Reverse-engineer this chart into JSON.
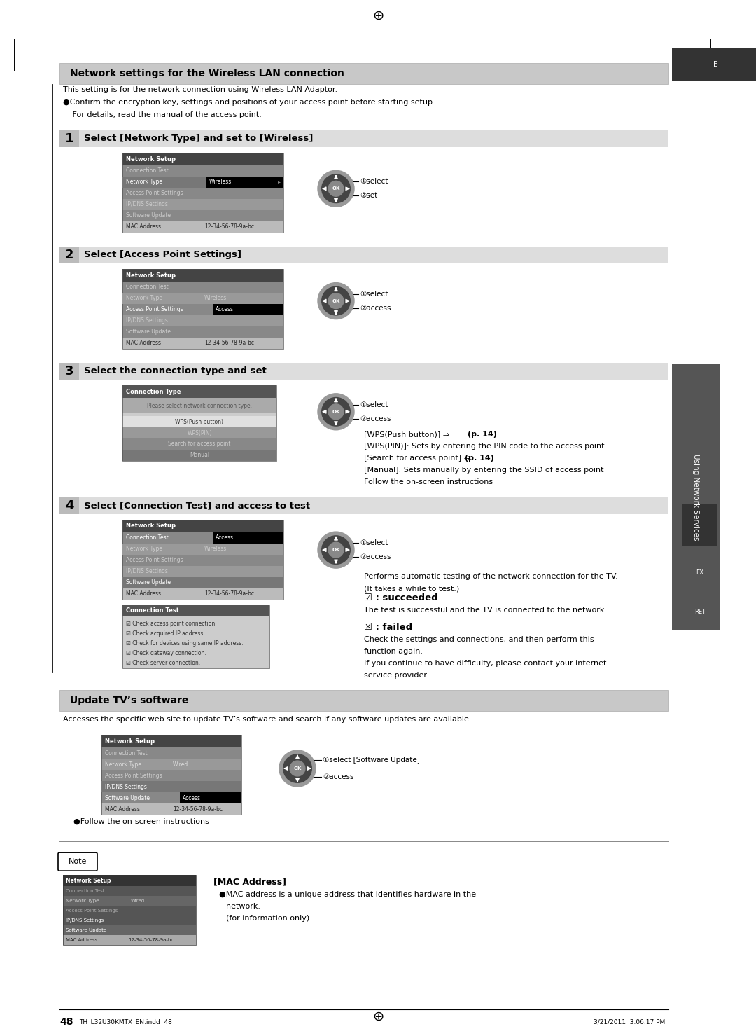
{
  "page_bg": "#ffffff",
  "page_num": "48",
  "footer_left": "TH_L32U30KMTX_EN.indd  48",
  "footer_right": "3/21/2011  3:06:17 PM",
  "section1_title": "Network settings for the Wireless LAN connection",
  "section2_title": "Update TV’s software",
  "intro_line1": "This setting is for the network connection using Wireless LAN Adaptor.",
  "intro_bullet": "●Confirm the encryption key, settings and positions of your access point before starting setup.",
  "intro_line3": " For details, read the manual of the access point.",
  "step1_title": "Select [Network Type] and set to [Wireless]",
  "step2_title": "Select [Access Point Settings]",
  "step3_title": "Select the connection type and set",
  "step4_title": "Select [Connection Test] and access to test",
  "sidebar_text": "Using Network Services",
  "menu_rows": [
    "Connection Test",
    "Network Type",
    "Access Point Settings",
    "IP/DNS Settings",
    "Software Update",
    "MAC Address"
  ],
  "mac_val": "12-34-56-78-9a-bc"
}
